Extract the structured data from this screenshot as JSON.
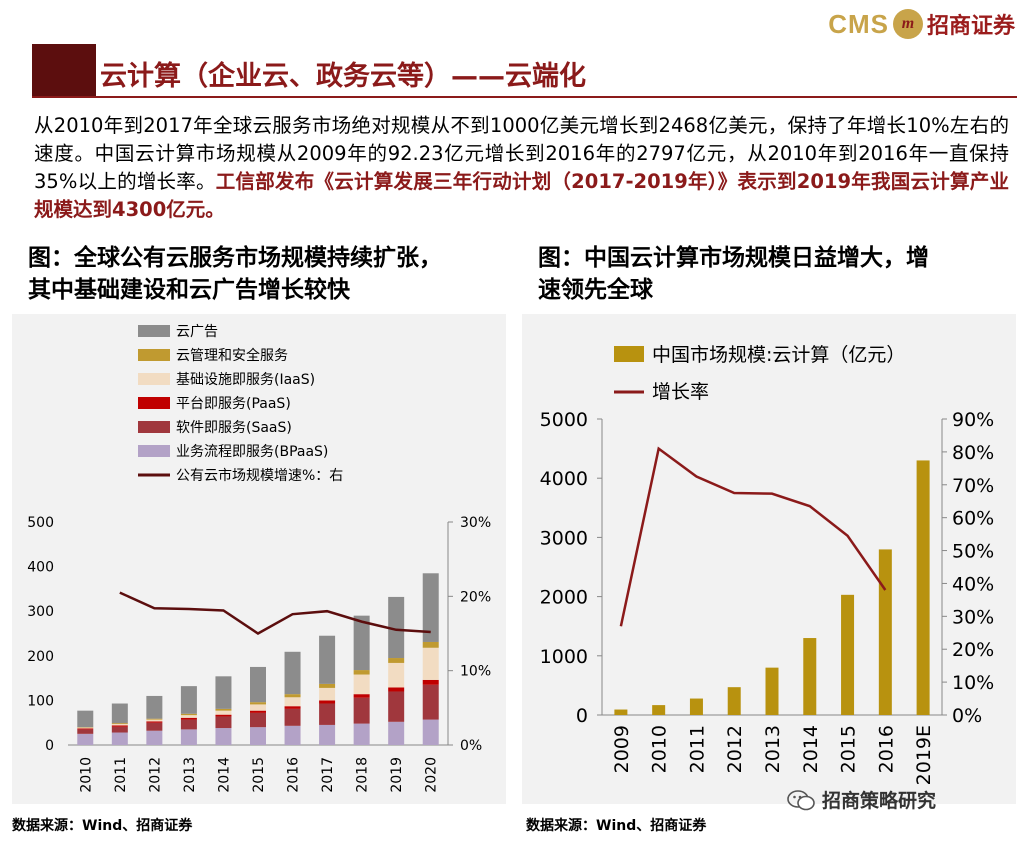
{
  "header": {
    "logo_cms": "CMS",
    "logo_badge": "m",
    "logo_cn": "招商证券",
    "title": "云计算（企业云、政务云等）——云端化"
  },
  "intro": {
    "plain": "从2010年到2017年全球云服务市场绝对规模从不到1000亿美元增长到2468亿美元，保持了年增长10%左右的速度。中国云计算市场规模从2009年的92.23亿元增长到2016年的2797亿元，从2010年到2016年一直保持35%以上的增长率。",
    "highlight": "工信部发布《云计算发展三年行动计划（2017-2019年）》表示到2019年我国云计算产业规模达到4300亿元。"
  },
  "figures": {
    "left_title_line1": "图：全球公有云服务市场规模持续扩张，",
    "left_title_line2": "其中基础建设和云广告增长较快",
    "right_title_line1": "图：中国云计算市场规模日益增大，增",
    "right_title_line2": "速领先全球",
    "left_source": "数据来源：Wind、招商证券",
    "right_source": "数据来源：Wind、招商证券"
  },
  "watermark": "招商策略研究",
  "colors": {
    "brand_red": "#8b1a1a",
    "gold": "#c8a44a"
  },
  "chart_data": [
    {
      "type": "bar",
      "stacked": true,
      "categories": [
        "2010",
        "2011",
        "2012",
        "2013",
        "2014",
        "2015",
        "2016",
        "2017",
        "2018",
        "2019",
        "2020"
      ],
      "series": [
        {
          "name": "业务流程即服务(BPaaS)",
          "color": "#b3a2c7",
          "values": [
            25,
            28,
            32,
            35,
            38,
            40,
            43,
            45,
            48,
            52,
            57
          ]
        },
        {
          "name": "软件即服务(SaaS)",
          "color": "#a0373d",
          "values": [
            10,
            13,
            18,
            22,
            26,
            32,
            38,
            48,
            58,
            68,
            78
          ]
        },
        {
          "name": "平台即服务(PaaS)",
          "color": "#c00000",
          "values": [
            2,
            3,
            3,
            4,
            4,
            5,
            6,
            7,
            8,
            9,
            11
          ]
        },
        {
          "name": "基础设施即服务(IaaS)",
          "color": "#f2dcc2",
          "values": [
            2,
            3,
            4,
            6,
            9,
            14,
            20,
            28,
            44,
            55,
            72
          ]
        },
        {
          "name": "云管理和安全服务",
          "color": "#c09a30",
          "values": [
            1,
            2,
            2,
            3,
            4,
            5,
            7,
            9,
            10,
            11,
            13
          ]
        },
        {
          "name": "云广告",
          "color": "#8c8c8c",
          "values": [
            37,
            44,
            51,
            62,
            73,
            79,
            95,
            108,
            122,
            137,
            154
          ]
        }
      ],
      "line": {
        "name": "公有云市场规模增速%：右",
        "color": "#5c0e0e",
        "categories": [
          "2011",
          "2012",
          "2013",
          "2014",
          "2015",
          "2016",
          "2017",
          "2018",
          "2019",
          "2020"
        ],
        "values": [
          20.5,
          18.4,
          18.3,
          18.1,
          15.0,
          17.6,
          18.0,
          16.6,
          15.5,
          15.2
        ]
      },
      "y_left": {
        "min": 0,
        "max": 500,
        "ticks": [
          0,
          100,
          200,
          300,
          400,
          500
        ]
      },
      "y_right": {
        "min": 0,
        "max": 30,
        "ticks": [
          "0%",
          "10%",
          "20%",
          "30%"
        ]
      },
      "legend_position": "top-left"
    },
    {
      "type": "bar",
      "categories": [
        "2009",
        "2010",
        "2011",
        "2012",
        "2013",
        "2014",
        "2015",
        "2016",
        "2019E"
      ],
      "series": [
        {
          "name": "中国市场规模:云计算（亿元）",
          "color": "#b8920f",
          "values": [
            92.23,
            167,
            278,
            470,
            800,
            1300,
            2030,
            2797,
            4300
          ]
        }
      ],
      "line": {
        "name": "增长率",
        "color": "#8b1a1a",
        "categories": [
          "2009",
          "2010",
          "2011",
          "2012",
          "2013",
          "2014",
          "2015",
          "2016"
        ],
        "values": [
          27,
          81,
          72.5,
          67.5,
          67.3,
          63.5,
          54.5,
          38
        ]
      },
      "y_left": {
        "min": 0,
        "max": 5000,
        "ticks": [
          0,
          1000,
          2000,
          3000,
          4000,
          5000
        ]
      },
      "y_right": {
        "min": 0,
        "max": 90,
        "ticks": [
          "0%",
          "10%",
          "20%",
          "30%",
          "40%",
          "50%",
          "60%",
          "70%",
          "80%",
          "90%"
        ]
      },
      "legend_position": "top"
    }
  ]
}
